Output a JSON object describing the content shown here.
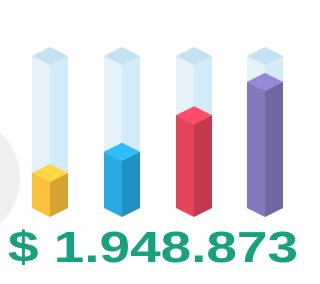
{
  "chart_data": {
    "type": "bar",
    "values": [
      23,
      37,
      61,
      83
    ],
    "colors": [
      "#fcc13c",
      "#2aa9e3",
      "#e5445d",
      "#8579bd"
    ],
    "ylim": [
      0,
      100
    ],
    "annotation": "$ 1.948.873",
    "annotation_color": "#17a17d"
  }
}
